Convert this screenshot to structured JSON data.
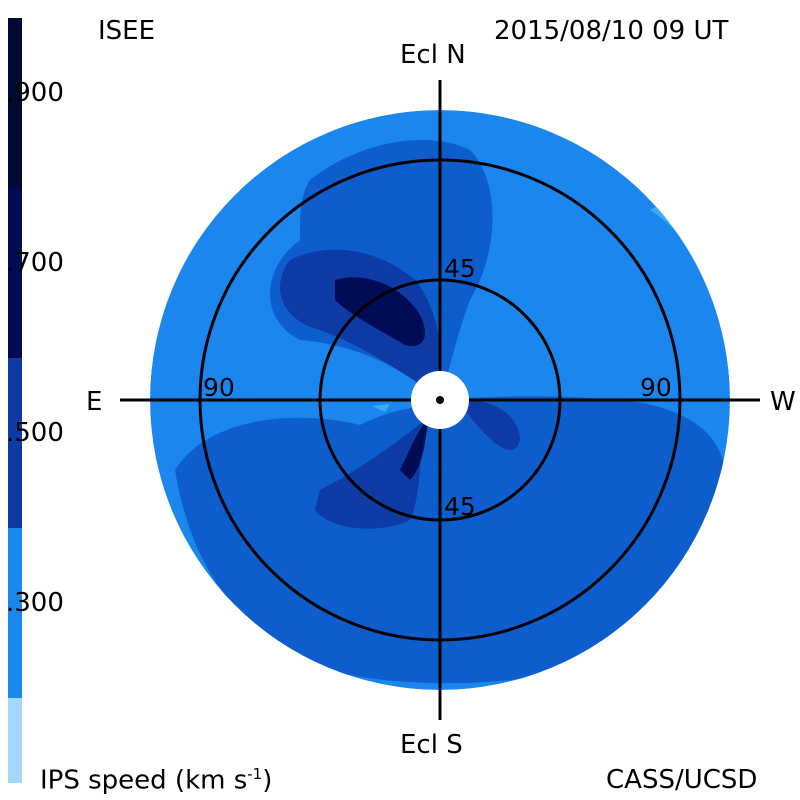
{
  "header": {
    "org": "ISEE",
    "timestamp": "2015/08/10 09 UT"
  },
  "footer": {
    "colorbar_title": "IPS speed (km s",
    "colorbar_exp": "-1",
    "colorbar_close": ")",
    "credit": "CASS/UCSD"
  },
  "directions": {
    "north": "Ecl N",
    "south": "Ecl S",
    "east": "E",
    "west": "W"
  },
  "rings": {
    "inner": "45",
    "outer": "90"
  },
  "colorbar": {
    "tick_labels": [
      "900",
      "700",
      "500",
      "300"
    ],
    "colors": [
      "#010a33",
      "#000b55",
      "#0c1f88",
      "#0d3aa5",
      "#0e5dcc",
      "#1a86ee",
      "#3aaaf9",
      "#a4d8fb"
    ]
  },
  "palette": {
    "base": "#1a86ee",
    "mid": "#0e5dcc",
    "dark": "#0d3aa5",
    "darker": "#0c1f88",
    "darkest": "#000b55",
    "light": "#3aaaf9"
  }
}
